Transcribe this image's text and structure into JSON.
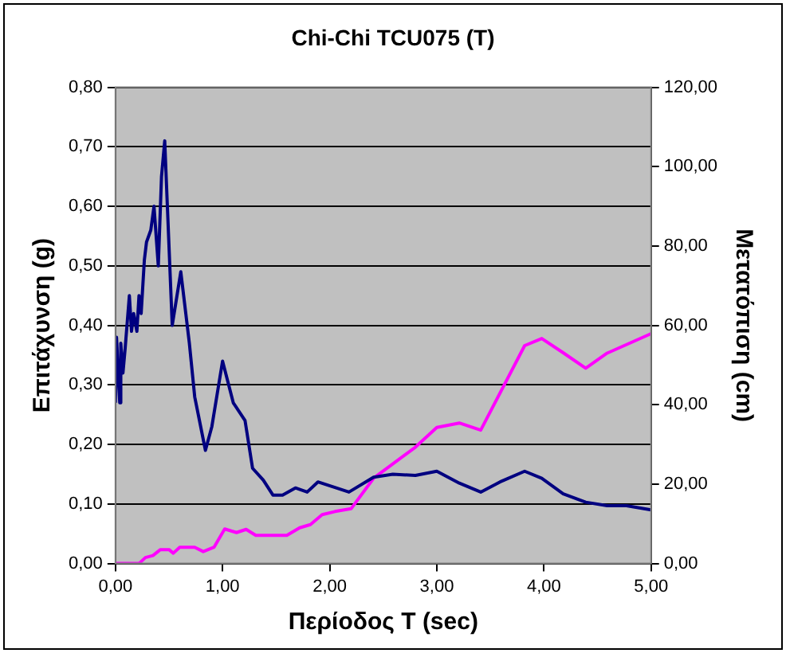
{
  "chart_data": {
    "type": "line",
    "title": "Chi-Chi TCU075 (T)",
    "xlabel": "Περίοδος T (sec)",
    "ylabel": "Επιτάχυνση (g)",
    "y2label": "Μετατόπιση (cm)",
    "series": [
      {
        "color": "#000080",
        "x": [
          0,
          0.01,
          0.04,
          0.05,
          0.07,
          0.09,
          0.13,
          0.15,
          0.17,
          0.2,
          0.22,
          0.24,
          0.27,
          0.29,
          0.33,
          0.36,
          0.4,
          0.43,
          0.46,
          0.53,
          0.61,
          0.69,
          0.74,
          0.84,
          0.9,
          1.0,
          1.1,
          1.21,
          1.28,
          1.38,
          1.47,
          1.56,
          1.68,
          1.79,
          1.89,
          2.18,
          2.41,
          2.59,
          2.8,
          3.0,
          3.21,
          3.41,
          3.59,
          3.82,
          3.98,
          4.18,
          4.39,
          4.59,
          4.77,
          5.0
        ],
        "values": [
          0.27,
          0.38,
          0.27,
          0.37,
          0.32,
          0.36,
          0.45,
          0.39,
          0.42,
          0.39,
          0.45,
          0.42,
          0.51,
          0.54,
          0.56,
          0.6,
          0.5,
          0.65,
          0.71,
          0.4,
          0.49,
          0.37,
          0.28,
          0.19,
          0.23,
          0.34,
          0.27,
          0.24,
          0.16,
          0.14,
          0.115,
          0.115,
          0.127,
          0.12,
          0.137,
          0.12,
          0.145,
          0.15,
          0.148,
          0.155,
          0.135,
          0.12,
          0.137,
          0.155,
          0.143,
          0.117,
          0.103,
          0.097,
          0.097,
          0.09
        ]
      },
      {
        "color": "#ff00ff",
        "axis": "y2",
        "x": [
          0,
          0.22,
          0.28,
          0.35,
          0.42,
          0.5,
          0.54,
          0.6,
          0.74,
          0.82,
          0.92,
          1.02,
          1.13,
          1.22,
          1.31,
          1.6,
          1.72,
          1.82,
          1.93,
          2.05,
          2.2,
          2.41,
          2.8,
          3.0,
          3.21,
          3.41,
          3.82,
          3.98,
          4.18,
          4.39,
          4.59,
          5.0
        ],
        "values": [
          0,
          0,
          1.5,
          2,
          3.5,
          3.5,
          2.6,
          4.1,
          4.1,
          3,
          4.1,
          8.7,
          7.8,
          8.6,
          7.1,
          7.1,
          9,
          9.8,
          12.3,
          13.1,
          13.8,
          21.5,
          29.3,
          34.3,
          35.4,
          33.6,
          54.9,
          56.7,
          53.1,
          49.2,
          53,
          57.9
        ]
      }
    ],
    "xlim": [
      0,
      5
    ],
    "xticks": [
      {
        "value": 0,
        "label": "0,00"
      },
      {
        "value": 1,
        "label": "1,00"
      },
      {
        "value": 2,
        "label": "2,00"
      },
      {
        "value": 3,
        "label": "3,00"
      },
      {
        "value": 4,
        "label": "4,00"
      },
      {
        "value": 5,
        "label": "5,00"
      }
    ],
    "ylim": [
      0,
      0.8
    ],
    "yticks": [
      {
        "value": 0,
        "label": "0,00"
      },
      {
        "value": 0.1,
        "label": "0,10"
      },
      {
        "value": 0.2,
        "label": "0,20"
      },
      {
        "value": 0.3,
        "label": "0,30"
      },
      {
        "value": 0.4,
        "label": "0,40"
      },
      {
        "value": 0.5,
        "label": "0,50"
      },
      {
        "value": 0.6,
        "label": "0,60"
      },
      {
        "value": 0.7,
        "label": "0,70"
      },
      {
        "value": 0.8,
        "label": "0,80"
      }
    ],
    "y2lim": [
      0,
      120
    ],
    "y2ticks": [
      {
        "value": 0,
        "label": "0,00"
      },
      {
        "value": 20,
        "label": "20,00"
      },
      {
        "value": 40,
        "label": "40,00"
      },
      {
        "value": 60,
        "label": "60,00"
      },
      {
        "value": 80,
        "label": "80,00"
      },
      {
        "value": 100,
        "label": "100,00"
      },
      {
        "value": 120,
        "label": "120,00"
      }
    ],
    "grid": "y",
    "marker": "none",
    "line_style": "solid",
    "legend": false
  }
}
